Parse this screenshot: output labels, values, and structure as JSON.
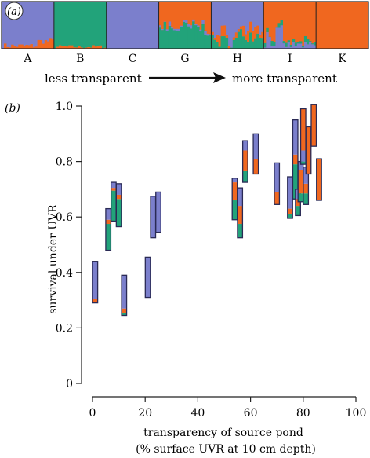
{
  "panel_a": {
    "panel_label": "(a)",
    "groups": [
      "A",
      "B",
      "C",
      "G",
      "H",
      "I",
      "K"
    ],
    "arrow_left_text": "less transparent",
    "arrow_right_text": "more transparent",
    "colors": {
      "purple": "#7b7fcc",
      "green": "#22a37a",
      "orange": "#f0671f"
    },
    "dominant_cluster": [
      "purple",
      "green",
      "purple",
      "orange",
      "purple",
      "orange",
      "orange"
    ]
  },
  "chart_data": {
    "type": "stacked-range-bar",
    "panel_label": "(b)",
    "xlabel": "transparency of source pond",
    "xlabel2": "(% surface UVR at 10 cm depth)",
    "ylabel": "survival under UVR",
    "xlim": [
      -5,
      100
    ],
    "ylim": [
      0,
      1.0
    ],
    "xticks": [
      0,
      20,
      40,
      60,
      80,
      100
    ],
    "yticks": [
      0,
      0.2,
      0.4,
      0.6,
      0.8,
      1.0
    ],
    "ytick_labels": [
      "0",
      "0.2",
      "0.4",
      "0.6",
      "0.8",
      "1.0"
    ],
    "colors": {
      "purple": "#7b7fcc",
      "green": "#22a37a",
      "orange": "#f0671f"
    },
    "bars": [
      {
        "x": 1,
        "segments": [
          [
            "orange",
            0.29,
            0.305
          ],
          [
            "purple",
            0.305,
            0.44
          ]
        ]
      },
      {
        "x": 6,
        "segments": [
          [
            "green",
            0.48,
            0.575
          ],
          [
            "orange",
            0.575,
            0.59
          ],
          [
            "purple",
            0.59,
            0.63
          ]
        ]
      },
      {
        "x": 8,
        "segments": [
          [
            "green",
            0.585,
            0.695
          ],
          [
            "orange",
            0.695,
            0.705
          ],
          [
            "purple",
            0.705,
            0.725
          ]
        ]
      },
      {
        "x": 10,
        "segments": [
          [
            "green",
            0.565,
            0.665
          ],
          [
            "orange",
            0.665,
            0.68
          ],
          [
            "purple",
            0.68,
            0.72
          ]
        ]
      },
      {
        "x": 12,
        "segments": [
          [
            "green",
            0.245,
            0.255
          ],
          [
            "orange",
            0.255,
            0.27
          ],
          [
            "purple",
            0.27,
            0.39
          ]
        ]
      },
      {
        "x": 21,
        "segments": [
          [
            "purple",
            0.31,
            0.455
          ]
        ]
      },
      {
        "x": 23,
        "segments": [
          [
            "purple",
            0.525,
            0.675
          ]
        ]
      },
      {
        "x": 25,
        "segments": [
          [
            "purple",
            0.545,
            0.69
          ]
        ]
      },
      {
        "x": 54,
        "segments": [
          [
            "green",
            0.59,
            0.66
          ],
          [
            "orange",
            0.66,
            0.725
          ],
          [
            "purple",
            0.725,
            0.74
          ]
        ]
      },
      {
        "x": 56,
        "segments": [
          [
            "green",
            0.525,
            0.575
          ],
          [
            "orange",
            0.575,
            0.64
          ],
          [
            "purple",
            0.64,
            0.705
          ]
        ]
      },
      {
        "x": 58,
        "segments": [
          [
            "green",
            0.725,
            0.765
          ],
          [
            "orange",
            0.765,
            0.84
          ],
          [
            "purple",
            0.84,
            0.875
          ]
        ]
      },
      {
        "x": 62,
        "segments": [
          [
            "orange",
            0.755,
            0.81
          ],
          [
            "purple",
            0.81,
            0.9
          ]
        ]
      },
      {
        "x": 70,
        "segments": [
          [
            "orange",
            0.645,
            0.69
          ],
          [
            "purple",
            0.69,
            0.795
          ]
        ]
      },
      {
        "x": 75,
        "segments": [
          [
            "green",
            0.595,
            0.61
          ],
          [
            "orange",
            0.61,
            0.63
          ],
          [
            "purple",
            0.63,
            0.745
          ]
        ]
      },
      {
        "x": 77,
        "segments": [
          [
            "green",
            0.665,
            0.79
          ],
          [
            "orange",
            0.79,
            0.825
          ],
          [
            "purple",
            0.825,
            0.95
          ]
        ]
      },
      {
        "x": 78,
        "segments": [
          [
            "green",
            0.605,
            0.64
          ],
          [
            "orange",
            0.64,
            0.665
          ],
          [
            "purple",
            0.665,
            0.7
          ]
        ]
      },
      {
        "x": 79,
        "segments": [
          [
            "green",
            0.655,
            0.685
          ],
          [
            "orange",
            0.685,
            0.77
          ],
          [
            "purple",
            0.77,
            0.8
          ]
        ]
      },
      {
        "x": 80,
        "segments": [
          [
            "green",
            0.79,
            0.8
          ],
          [
            "purple",
            0.8,
            0.84
          ],
          [
            "orange",
            0.84,
            0.99
          ]
        ]
      },
      {
        "x": 81,
        "segments": [
          [
            "green",
            0.645,
            0.685
          ],
          [
            "orange",
            0.685,
            0.72
          ],
          [
            "purple",
            0.72,
            0.78
          ]
        ]
      },
      {
        "x": 82,
        "segments": [
          [
            "orange",
            0.755,
            0.925
          ]
        ]
      },
      {
        "x": 84,
        "segments": [
          [
            "orange",
            0.855,
            1.005
          ]
        ]
      },
      {
        "x": 86,
        "segments": [
          [
            "orange",
            0.66,
            0.81
          ]
        ]
      }
    ]
  }
}
